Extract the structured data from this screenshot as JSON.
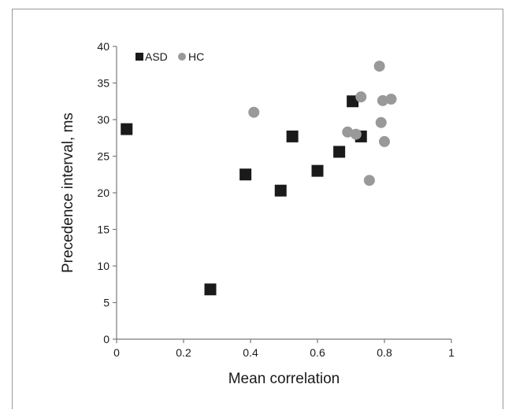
{
  "chart_data": {
    "type": "scatter",
    "title": "",
    "xlabel": "Mean correlation",
    "ylabel": "Precedence interval, ms",
    "xlim": [
      0,
      1
    ],
    "ylim": [
      0,
      40
    ],
    "x_ticks": [
      "0",
      "0.2",
      "0.4",
      "0.6",
      "0.8",
      "1"
    ],
    "y_ticks": [
      "0",
      "5",
      "10",
      "15",
      "20",
      "25",
      "30",
      "35",
      "40"
    ],
    "grid": false,
    "legend_position": "top-left",
    "series": [
      {
        "name": "ASD",
        "marker": "square",
        "color": "#1a1a1a",
        "points": [
          {
            "x": 0.03,
            "y": 28.7
          },
          {
            "x": 0.28,
            "y": 6.8
          },
          {
            "x": 0.385,
            "y": 22.5
          },
          {
            "x": 0.49,
            "y": 20.3
          },
          {
            "x": 0.525,
            "y": 27.7
          },
          {
            "x": 0.6,
            "y": 23.0
          },
          {
            "x": 0.665,
            "y": 25.6
          },
          {
            "x": 0.705,
            "y": 32.5
          },
          {
            "x": 0.73,
            "y": 27.7
          }
        ]
      },
      {
        "name": "HC",
        "marker": "circle",
        "color": "#999999",
        "points": [
          {
            "x": 0.41,
            "y": 31.0
          },
          {
            "x": 0.69,
            "y": 28.3
          },
          {
            "x": 0.715,
            "y": 28.0
          },
          {
            "x": 0.73,
            "y": 33.1
          },
          {
            "x": 0.755,
            "y": 21.7
          },
          {
            "x": 0.785,
            "y": 37.3
          },
          {
            "x": 0.79,
            "y": 29.6
          },
          {
            "x": 0.795,
            "y": 32.6
          },
          {
            "x": 0.8,
            "y": 27.0
          },
          {
            "x": 0.82,
            "y": 32.8
          }
        ]
      }
    ]
  }
}
